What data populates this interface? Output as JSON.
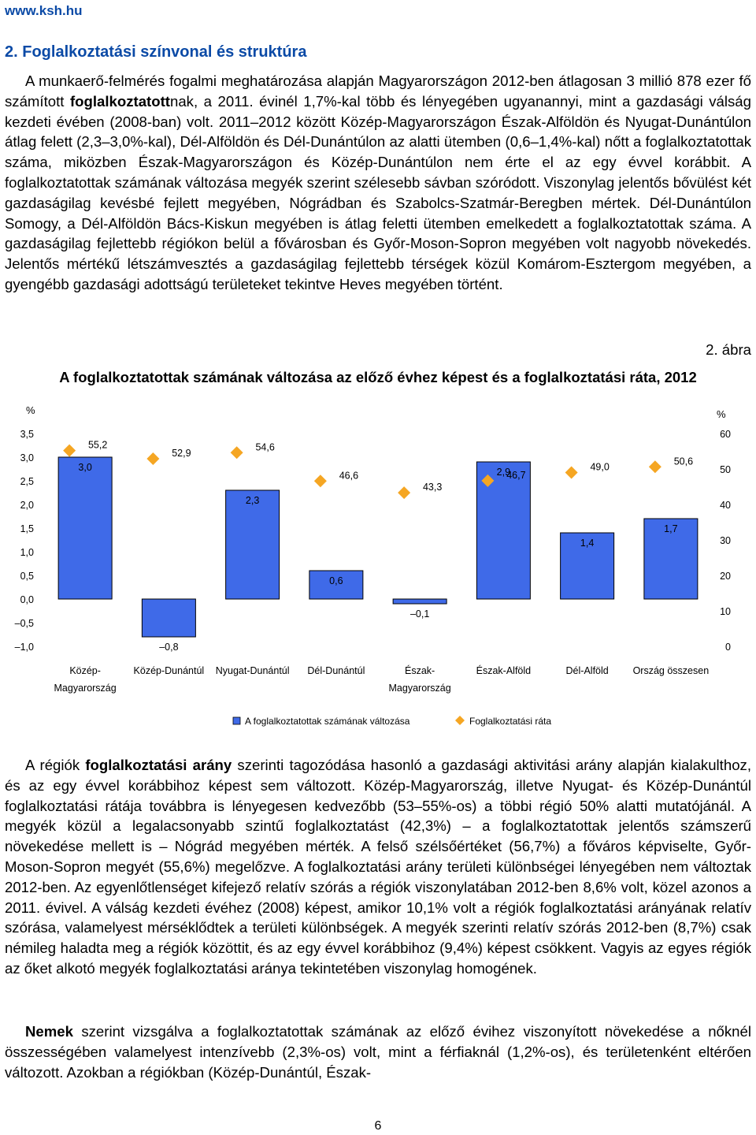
{
  "header": {
    "site": "www.ksh.hu"
  },
  "section": {
    "title": "2. Foglalkoztatási színvonal és struktúra"
  },
  "paragraph1": {
    "a": "A munkaerő-felmérés fogalmi meghatározása alapján Magyarországon 2012-ben átlagosan 3 millió 878 ezer fő számított ",
    "b": "foglalkoztatott",
    "c": "nak, a 2011. évinél 1,7%-kal több és lényegében ugyanannyi, mint a gazdasági válság kezdeti évében (2008-ban) volt. 2011–2012 között Közép-Magyarországon Észak-Alföldön és Nyugat-Dunántúlon átlag felett (2,3–3,0%-kal), Dél-Alföldön és Dél-Dunántúlon az alatti ütemben (0,6–1,4%-kal) nőtt a foglalkoztatottak száma, miközben Észak-Magyarországon és Közép-Dunántúlon nem érte el az egy évvel korábbit. A foglalkoztatottak számának változása megyék szerint szélesebb sávban szóródott. Viszonylag jelentős bővülést két gazdaságilag kevésbé fejlett megyében, Nógrádban és Szabolcs-Szatmár-Beregben mértek. Dél-Dunántúlon Somogy, a Dél-Alföldön Bács-Kiskun megyében is átlag feletti ütemben emelkedett a foglalkoztatottak száma. A gazdaságilag fejlettebb régiókon belül a fővárosban és Győr-Moson-Sopron megyében volt nagyobb növekedés. Jelentős mértékű létszámvesztés a gazdaságilag fejlettebb térségek közül Komárom-Esztergom megyében, a gyengébb gazdasági adottságú területeket tekintve Heves megyében történt."
  },
  "figure": {
    "number": "2. ábra",
    "title": "A foglalkoztatottak számának változása az előző évhez képest és a foglalkoztatási ráta, 2012"
  },
  "chart_data": {
    "type": "bar",
    "categories": [
      [
        "Közép-",
        "Magyarország"
      ],
      [
        "Közép-Dunántúl"
      ],
      [
        "Nyugat-Dunántúl"
      ],
      [
        "Dél-Dunántúl"
      ],
      [
        "Észak-",
        "Magyarország"
      ],
      [
        "Észak-Alföld"
      ],
      [
        "Dél-Alföld"
      ],
      [
        "Ország összesen"
      ]
    ],
    "series": [
      {
        "name": "A foglalkoztatottak számának változása",
        "axis": "left",
        "type": "bar",
        "values": [
          3.0,
          -0.8,
          2.3,
          0.6,
          -0.1,
          2.9,
          1.4,
          1.7
        ],
        "labels": [
          "3,0",
          "–0,8",
          "2,3",
          "0,6",
          "–0,1",
          "2,9",
          "1,4",
          "1,7"
        ]
      },
      {
        "name": "Foglalkoztatási ráta",
        "axis": "right",
        "type": "scatter",
        "values": [
          55.2,
          52.9,
          54.6,
          46.6,
          43.3,
          46.7,
          49.0,
          50.6
        ],
        "labels": [
          "55,2",
          "52,9",
          "54,6",
          "46,6",
          "43,3",
          "46,7",
          "49,0",
          "50,6"
        ]
      }
    ],
    "left_axis": {
      "unit": "%",
      "min": -1.0,
      "max": 3.5,
      "ticks": [
        "3,5",
        "3,0",
        "2,5",
        "2,0",
        "1,5",
        "1,0",
        "0,5",
        "0,0",
        "–0,5",
        "–1,0"
      ]
    },
    "right_axis": {
      "unit": "%",
      "min": 0,
      "max": 60,
      "ticks": [
        "60",
        "50",
        "40",
        "30",
        "20",
        "10",
        "0"
      ]
    },
    "bar_color": "#3f6ae8",
    "marker_color": "#f5a623",
    "legend_position": "bottom"
  },
  "paragraph2": {
    "a": "A régiók ",
    "b": "foglalkoztatási arány",
    "c": " szerinti tagozódása hasonló a gazdasági aktivitási arány alapján kialakulthoz, és az egy évvel korábbihoz képest sem változott. Közép-Magyarország, illetve Nyugat- és Közép-Dunántúl foglalkoztatási rátája továbbra is lényegesen kedvezőbb (53–55%-os) a többi régió 50% alatti mutatójánál. A megyék közül a legalacsonyabb szintű foglalkoztatást (42,3%) – a foglalkoztatottak jelentős számszerű növekedése mellett is – Nógrád megyében mérték. A felső szélsőértéket (56,7%) a főváros képviselte, Győr-Moson-Sopron megyét (55,6%) megelőzve. A foglalkoztatási arány területi különbségei lényegében nem változtak 2012-ben. Az egyenlőtlenséget kifejező relatív szórás a régiók viszonylatában 2012-ben 8,6% volt, közel azonos a 2011. évivel. A válság kezdeti évéhez (2008) képest, amikor 10,1% volt a régiók foglalkoztatási arányának relatív szórása, valamelyest mérséklődtek a területi különbségek. A megyék szerinti relatív szórás 2012-ben (8,7%) csak némileg haladta meg a régiók közöttit, és az egy évvel korábbihoz (9,4%) képest csökkent. Vagyis az egyes régiók az őket alkotó megyék foglalkoztatási aránya tekintetében viszonylag homogének."
  },
  "paragraph3": {
    "b": "Nemek",
    "c": " szerint vizsgálva a foglalkoztatottak számának az előző évihez viszonyított növekedése a nőknél összességében valamelyest intenzívebb (2,3%-os) volt, mint a férfiaknál (1,2%-os), és területenként eltérően változott. Azokban a régiókban (Közép-Dunántúl, Észak-"
  },
  "footer": {
    "page": "6"
  }
}
